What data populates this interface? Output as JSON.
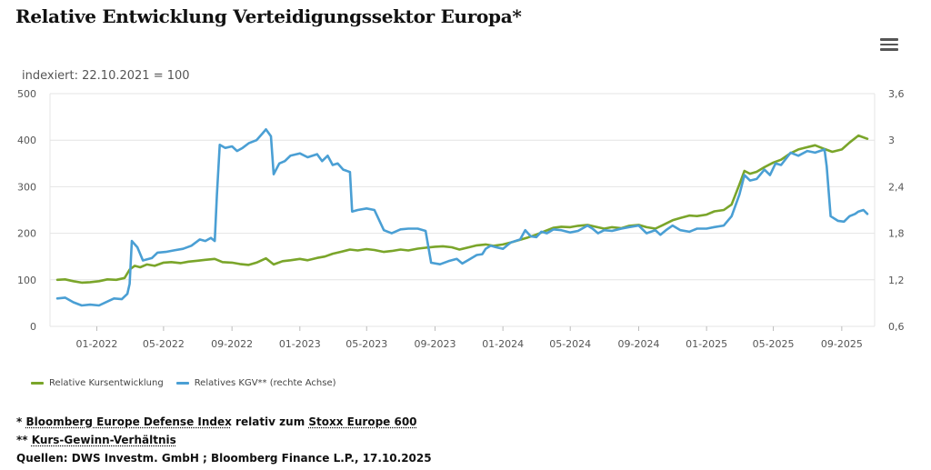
{
  "header": {
    "title": "Relative Entwicklung Verteidigungssektor Europa*",
    "subtitle": "indexiert: 22.10.2021 = 100",
    "menu_icon": "hamburger-menu-icon"
  },
  "colors": {
    "green": "#7aa52a",
    "blue": "#4a9fd4",
    "grid": "#e4e4e4",
    "tick_text": "#555555"
  },
  "legend": {
    "green_label": "Relative Kursentwicklung",
    "blue_label": "Relatives KGV** (rechte Achse)"
  },
  "footnotes": {
    "line1_prefix": "* ",
    "line1_link1": "Bloomberg Europe Defense Index",
    "line1_mid": " relativ zum ",
    "line1_link2": "Stoxx Europe 600",
    "line2_prefix": "** ",
    "line2_link": "Kurs-Gewinn-Verhältnis",
    "line3": "Quellen: DWS Investm. GmbH ; Bloomberg Finance L.P., 17.10.2025"
  },
  "chart_data": {
    "type": "line",
    "title": "Relative Entwicklung Verteidigungssektor Europa*",
    "subtitle": "indexiert: 22.10.2021 = 100",
    "x_start": "2021-10-22",
    "x_end": "2025-10-17",
    "x_ticks": [
      {
        "date": "2022-01-01",
        "label": "01-2022"
      },
      {
        "date": "2022-05-01",
        "label": "05-2022"
      },
      {
        "date": "2022-09-01",
        "label": "09-2022"
      },
      {
        "date": "2023-01-01",
        "label": "01-2023"
      },
      {
        "date": "2023-05-01",
        "label": "05-2023"
      },
      {
        "date": "2023-09-01",
        "label": "09-2023"
      },
      {
        "date": "2024-01-01",
        "label": "01-2024"
      },
      {
        "date": "2024-05-01",
        "label": "05-2024"
      },
      {
        "date": "2024-09-01",
        "label": "09-2024"
      },
      {
        "date": "2025-01-01",
        "label": "01-2025"
      },
      {
        "date": "2025-05-01",
        "label": "05-2025"
      },
      {
        "date": "2025-09-01",
        "label": "09-2025"
      }
    ],
    "left_axis": {
      "min": 0,
      "max": 500,
      "ticks": [
        "0",
        "100",
        "200",
        "300",
        "400",
        "500"
      ]
    },
    "right_axis": {
      "min": 0.6,
      "max": 3.6,
      "ticks": [
        "0,6",
        "1,2",
        "1,8",
        "2,4",
        "3",
        "3,6"
      ]
    },
    "legend_position": "bottom-left",
    "series": [
      {
        "name": "Relative Kursentwicklung",
        "axis": "left",
        "color": "#7aa52a",
        "points": [
          [
            "2021-10-22",
            100
          ],
          [
            "2021-11-05",
            101
          ],
          [
            "2021-11-20",
            97
          ],
          [
            "2021-12-05",
            94
          ],
          [
            "2021-12-20",
            95
          ],
          [
            "2022-01-05",
            97
          ],
          [
            "2022-01-20",
            101
          ],
          [
            "2022-02-05",
            100
          ],
          [
            "2022-02-20",
            104
          ],
          [
            "2022-03-01",
            122
          ],
          [
            "2022-03-10",
            130
          ],
          [
            "2022-03-20",
            127
          ],
          [
            "2022-04-01",
            133
          ],
          [
            "2022-04-15",
            130
          ],
          [
            "2022-05-01",
            137
          ],
          [
            "2022-05-15",
            138
          ],
          [
            "2022-06-01",
            136
          ],
          [
            "2022-06-15",
            139
          ],
          [
            "2022-07-01",
            141
          ],
          [
            "2022-07-15",
            143
          ],
          [
            "2022-08-01",
            145
          ],
          [
            "2022-08-15",
            138
          ],
          [
            "2022-09-01",
            137
          ],
          [
            "2022-09-15",
            134
          ],
          [
            "2022-10-01",
            132
          ],
          [
            "2022-10-15",
            137
          ],
          [
            "2022-11-01",
            146
          ],
          [
            "2022-11-15",
            133
          ],
          [
            "2022-12-01",
            140
          ],
          [
            "2022-12-15",
            142
          ],
          [
            "2023-01-01",
            145
          ],
          [
            "2023-01-15",
            142
          ],
          [
            "2023-02-01",
            147
          ],
          [
            "2023-02-15",
            150
          ],
          [
            "2023-03-01",
            156
          ],
          [
            "2023-03-15",
            160
          ],
          [
            "2023-04-01",
            165
          ],
          [
            "2023-04-15",
            163
          ],
          [
            "2023-05-01",
            166
          ],
          [
            "2023-05-15",
            164
          ],
          [
            "2023-06-01",
            160
          ],
          [
            "2023-06-15",
            162
          ],
          [
            "2023-07-01",
            165
          ],
          [
            "2023-07-15",
            163
          ],
          [
            "2023-08-01",
            167
          ],
          [
            "2023-08-15",
            169
          ],
          [
            "2023-09-01",
            171
          ],
          [
            "2023-09-15",
            172
          ],
          [
            "2023-10-01",
            170
          ],
          [
            "2023-10-15",
            165
          ],
          [
            "2023-11-01",
            170
          ],
          [
            "2023-11-15",
            174
          ],
          [
            "2023-12-01",
            176
          ],
          [
            "2023-12-15",
            173
          ],
          [
            "2024-01-01",
            176
          ],
          [
            "2024-01-15",
            180
          ],
          [
            "2024-02-01",
            186
          ],
          [
            "2024-02-15",
            191
          ],
          [
            "2024-03-01",
            197
          ],
          [
            "2024-03-15",
            204
          ],
          [
            "2024-04-01",
            212
          ],
          [
            "2024-04-15",
            214
          ],
          [
            "2024-05-01",
            213
          ],
          [
            "2024-05-15",
            216
          ],
          [
            "2024-06-01",
            218
          ],
          [
            "2024-06-15",
            214
          ],
          [
            "2024-07-01",
            210
          ],
          [
            "2024-07-15",
            213
          ],
          [
            "2024-08-01",
            211
          ],
          [
            "2024-08-15",
            216
          ],
          [
            "2024-09-01",
            218
          ],
          [
            "2024-09-15",
            213
          ],
          [
            "2024-10-01",
            210
          ],
          [
            "2024-10-15",
            218
          ],
          [
            "2024-11-01",
            228
          ],
          [
            "2024-11-15",
            233
          ],
          [
            "2024-12-01",
            238
          ],
          [
            "2024-12-15",
            237
          ],
          [
            "2025-01-01",
            240
          ],
          [
            "2025-01-15",
            247
          ],
          [
            "2025-02-01",
            250
          ],
          [
            "2025-02-15",
            262
          ],
          [
            "2025-03-01",
            305
          ],
          [
            "2025-03-10",
            334
          ],
          [
            "2025-03-20",
            328
          ],
          [
            "2025-04-01",
            332
          ],
          [
            "2025-04-15",
            342
          ],
          [
            "2025-05-01",
            352
          ],
          [
            "2025-05-15",
            358
          ],
          [
            "2025-06-01",
            372
          ],
          [
            "2025-06-15",
            380
          ],
          [
            "2025-07-01",
            385
          ],
          [
            "2025-07-15",
            389
          ],
          [
            "2025-08-01",
            381
          ],
          [
            "2025-08-15",
            375
          ],
          [
            "2025-09-01",
            380
          ],
          [
            "2025-09-15",
            395
          ],
          [
            "2025-10-01",
            410
          ],
          [
            "2025-10-17",
            403
          ]
        ]
      },
      {
        "name": "Relatives KGV** (rechte Achse)",
        "axis": "right",
        "color": "#4a9fd4",
        "points": [
          [
            "2021-10-22",
            0.96
          ],
          [
            "2021-11-05",
            0.97
          ],
          [
            "2021-11-20",
            0.91
          ],
          [
            "2021-12-05",
            0.87
          ],
          [
            "2021-12-20",
            0.88
          ],
          [
            "2022-01-05",
            0.87
          ],
          [
            "2022-01-20",
            0.92
          ],
          [
            "2022-02-01",
            0.96
          ],
          [
            "2022-02-15",
            0.95
          ],
          [
            "2022-02-25",
            1.02
          ],
          [
            "2022-03-01",
            1.15
          ],
          [
            "2022-03-05",
            1.7
          ],
          [
            "2022-03-15",
            1.62
          ],
          [
            "2022-03-25",
            1.45
          ],
          [
            "2022-04-10",
            1.48
          ],
          [
            "2022-04-20",
            1.55
          ],
          [
            "2022-05-05",
            1.56
          ],
          [
            "2022-05-20",
            1.58
          ],
          [
            "2022-06-05",
            1.6
          ],
          [
            "2022-06-20",
            1.64
          ],
          [
            "2022-07-05",
            1.72
          ],
          [
            "2022-07-15",
            1.7
          ],
          [
            "2022-07-25",
            1.74
          ],
          [
            "2022-08-01",
            1.7
          ],
          [
            "2022-08-05",
            2.3
          ],
          [
            "2022-08-10",
            2.94
          ],
          [
            "2022-08-20",
            2.9
          ],
          [
            "2022-09-01",
            2.92
          ],
          [
            "2022-09-10",
            2.86
          ],
          [
            "2022-09-20",
            2.9
          ],
          [
            "2022-10-01",
            2.96
          ],
          [
            "2022-10-15",
            3.0
          ],
          [
            "2022-10-25",
            3.08
          ],
          [
            "2022-11-01",
            3.14
          ],
          [
            "2022-11-10",
            3.05
          ],
          [
            "2022-11-15",
            2.56
          ],
          [
            "2022-11-25",
            2.7
          ],
          [
            "2022-12-05",
            2.73
          ],
          [
            "2022-12-15",
            2.8
          ],
          [
            "2023-01-01",
            2.83
          ],
          [
            "2023-01-15",
            2.78
          ],
          [
            "2023-02-01",
            2.82
          ],
          [
            "2023-02-10",
            2.73
          ],
          [
            "2023-02-20",
            2.8
          ],
          [
            "2023-03-01",
            2.68
          ],
          [
            "2023-03-10",
            2.7
          ],
          [
            "2023-03-20",
            2.62
          ],
          [
            "2023-04-01",
            2.59
          ],
          [
            "2023-04-05",
            2.08
          ],
          [
            "2023-04-15",
            2.1
          ],
          [
            "2023-05-01",
            2.12
          ],
          [
            "2023-05-15",
            2.1
          ],
          [
            "2023-06-01",
            1.84
          ],
          [
            "2023-06-15",
            1.8
          ],
          [
            "2023-07-01",
            1.85
          ],
          [
            "2023-07-15",
            1.86
          ],
          [
            "2023-08-01",
            1.86
          ],
          [
            "2023-08-15",
            1.83
          ],
          [
            "2023-08-25",
            1.42
          ],
          [
            "2023-09-10",
            1.4
          ],
          [
            "2023-09-25",
            1.44
          ],
          [
            "2023-10-10",
            1.47
          ],
          [
            "2023-10-20",
            1.41
          ],
          [
            "2023-11-01",
            1.46
          ],
          [
            "2023-11-15",
            1.52
          ],
          [
            "2023-11-25",
            1.53
          ],
          [
            "2023-12-01",
            1.6
          ],
          [
            "2023-12-10",
            1.64
          ],
          [
            "2023-12-20",
            1.62
          ],
          [
            "2024-01-01",
            1.6
          ],
          [
            "2024-01-15",
            1.68
          ],
          [
            "2024-02-01",
            1.72
          ],
          [
            "2024-02-10",
            1.84
          ],
          [
            "2024-02-20",
            1.76
          ],
          [
            "2024-03-01",
            1.75
          ],
          [
            "2024-03-10",
            1.82
          ],
          [
            "2024-03-20",
            1.8
          ],
          [
            "2024-04-01",
            1.85
          ],
          [
            "2024-04-15",
            1.84
          ],
          [
            "2024-05-01",
            1.81
          ],
          [
            "2024-05-15",
            1.83
          ],
          [
            "2024-06-01",
            1.9
          ],
          [
            "2024-06-10",
            1.86
          ],
          [
            "2024-06-20",
            1.8
          ],
          [
            "2024-07-01",
            1.84
          ],
          [
            "2024-07-15",
            1.83
          ],
          [
            "2024-08-01",
            1.86
          ],
          [
            "2024-08-15",
            1.88
          ],
          [
            "2024-09-01",
            1.9
          ],
          [
            "2024-09-15",
            1.8
          ],
          [
            "2024-10-01",
            1.84
          ],
          [
            "2024-10-10",
            1.78
          ],
          [
            "2024-10-20",
            1.84
          ],
          [
            "2024-11-01",
            1.9
          ],
          [
            "2024-11-15",
            1.84
          ],
          [
            "2024-12-01",
            1.82
          ],
          [
            "2024-12-15",
            1.86
          ],
          [
            "2025-01-01",
            1.86
          ],
          [
            "2025-01-15",
            1.88
          ],
          [
            "2025-02-01",
            1.9
          ],
          [
            "2025-02-15",
            2.02
          ],
          [
            "2025-03-01",
            2.3
          ],
          [
            "2025-03-10",
            2.55
          ],
          [
            "2025-03-20",
            2.48
          ],
          [
            "2025-04-01",
            2.5
          ],
          [
            "2025-04-15",
            2.62
          ],
          [
            "2025-04-25",
            2.55
          ],
          [
            "2025-05-05",
            2.7
          ],
          [
            "2025-05-15",
            2.68
          ],
          [
            "2025-06-01",
            2.84
          ],
          [
            "2025-06-15",
            2.8
          ],
          [
            "2025-07-01",
            2.86
          ],
          [
            "2025-07-15",
            2.84
          ],
          [
            "2025-08-01",
            2.88
          ],
          [
            "2025-08-05",
            2.66
          ],
          [
            "2025-08-12",
            2.02
          ],
          [
            "2025-08-25",
            1.96
          ],
          [
            "2025-09-05",
            1.95
          ],
          [
            "2025-09-15",
            2.02
          ],
          [
            "2025-09-25",
            2.05
          ],
          [
            "2025-10-01",
            2.08
          ],
          [
            "2025-10-10",
            2.1
          ],
          [
            "2025-10-17",
            2.05
          ]
        ]
      }
    ]
  }
}
